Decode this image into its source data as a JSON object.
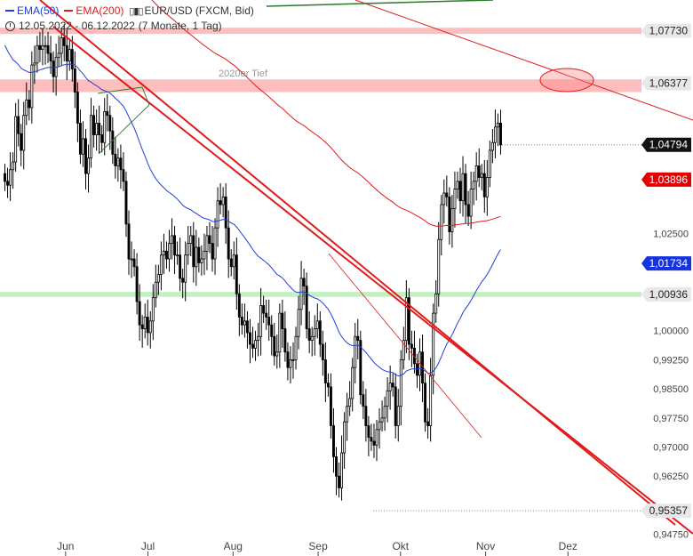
{
  "legend": {
    "ema50_label": "EMA(50)",
    "ema200_label": "EMA(200)",
    "instrument": "EUR/USD (FXCM, Bid)",
    "candle_icon": "candlestick-icon",
    "ema50_color": "#1f3fd9",
    "ema200_color": "#e01b1b"
  },
  "date_range": {
    "text": "12.05.2022 - 06.12.2022",
    "period": "(7 Monate, 1 Tag)",
    "icon": "clock-icon"
  },
  "chart_data": {
    "type": "candlestick",
    "ylim": [
      0.9465,
      1.0825
    ],
    "y_ticks": [
      "1,07730",
      "1,06377",
      "1,04794",
      "1,03896",
      "1,02500",
      "1,01734",
      "1,00936",
      "1,00000",
      "0,99250",
      "0,98500",
      "0,97750",
      "0,97000",
      "0,96250",
      "0,95357",
      "0,94750"
    ],
    "x_ticks": [
      "Jun",
      "Jul",
      "Aug",
      "Sep",
      "Okt",
      "Nov",
      "Dez"
    ],
    "x_tick_days": [
      20,
      50,
      81,
      112,
      142,
      173,
      203
    ],
    "x_start": "2022-05-12",
    "price_labels": [
      {
        "value": 1.0773,
        "text": "1,07730",
        "style": "gray"
      },
      {
        "value": 1.06377,
        "text": "1,06377",
        "style": "gray"
      },
      {
        "value": 1.04794,
        "text": "1,04794",
        "style": "black"
      },
      {
        "value": 1.03896,
        "text": "1,03896",
        "style": "red"
      },
      {
        "value": 1.01734,
        "text": "1,01734",
        "style": "blue"
      },
      {
        "value": 1.00936,
        "text": "1,00936",
        "style": "gray"
      },
      {
        "value": 0.95357,
        "text": "0,95357",
        "style": "gray"
      }
    ],
    "zones": [
      {
        "from": 1.0765,
        "to": 1.0781,
        "color": "#ffb3b3"
      },
      {
        "from": 1.0615,
        "to": 1.0648,
        "color": "#ffb3b3"
      },
      {
        "from": 1.0087,
        "to": 1.01,
        "color": "#b8eeb8"
      }
    ],
    "annotation": {
      "text": "2020er Tief",
      "value": 1.0665
    },
    "closes": [
      1.0385,
      1.0375,
      1.0415,
      1.0435,
      1.0552,
      1.0508,
      1.0465,
      1.0555,
      1.0595,
      1.0575,
      1.0685,
      1.069,
      1.0735,
      1.0725,
      1.0735,
      1.0735,
      1.0715,
      1.0695,
      1.0655,
      1.0705,
      1.0715,
      1.0755,
      1.0735,
      1.0695,
      1.0725,
      1.0675,
      1.0615,
      1.0535,
      1.0455,
      1.0495,
      1.0405,
      1.0445,
      1.0555,
      1.0505,
      1.0535,
      1.0505,
      1.0485,
      1.0565,
      1.0555,
      1.0515,
      1.0455,
      1.0425,
      1.0445,
      1.0415,
      1.0385,
      1.0275,
      1.0185,
      1.0185,
      1.0165,
      1.0075,
      1.0015,
      1.0005,
      1.0035,
      0.9995,
      1.0025,
      1.0085,
      1.0125,
      1.0145,
      1.0195,
      1.0205,
      1.0185,
      1.0225,
      1.0245,
      1.0195,
      1.0195,
      1.0135,
      1.0125,
      1.0195,
      1.0225,
      1.0245,
      1.0165,
      1.0215,
      1.0175,
      1.0185,
      1.0205,
      1.0245,
      1.0225,
      1.0185,
      1.0265,
      1.0335,
      1.0325,
      1.0345,
      1.0265,
      1.0185,
      1.0165,
      1.0195,
      1.0095,
      1.0035,
      1.0015,
      1.0025,
      0.9995,
      0.9965,
      0.9955,
      0.9975,
      0.9985,
      1.0065,
      1.0045,
      1.0035,
      1.0015,
      0.9985,
      0.9935,
      0.9945,
      1.0045,
      1.0005,
      0.9945,
      0.9905,
      0.9925,
      0.9925,
      0.9985,
      1.0055,
      1.0135,
      1.0115,
      1.0005,
      0.9975,
      0.9985,
      1.0005,
      1.0025,
      0.9965,
      0.9925,
      0.9865,
      0.9855,
      0.9755,
      0.9675,
      0.9625,
      0.9595,
      0.9685,
      0.9765,
      0.9805,
      0.9825,
      0.9905,
      0.9985,
      0.9975,
      0.9835,
      0.9805,
      0.9755,
      0.9725,
      0.9715,
      0.9705,
      0.9745,
      0.9765,
      0.9775,
      0.9805,
      0.9845,
      0.9865,
      0.9855,
      0.9755,
      0.9805,
      0.9925,
      0.9975,
      1.0085,
      0.9965,
      0.9955,
      0.9915,
      0.9885,
      0.9945,
      0.9865,
      0.9765,
      0.9755,
      0.9885,
      1.0045,
      1.0095,
      1.0235,
      1.0325,
      1.0355,
      1.0345,
      1.0255,
      1.0315,
      1.0365,
      1.0385,
      1.0335,
      1.0405,
      1.0325,
      1.0295,
      1.0365,
      1.0385,
      1.0425,
      1.0395,
      1.0405,
      1.0345,
      1.0395,
      1.0465,
      1.0485,
      1.0525,
      1.0535,
      1.0479
    ]
  }
}
